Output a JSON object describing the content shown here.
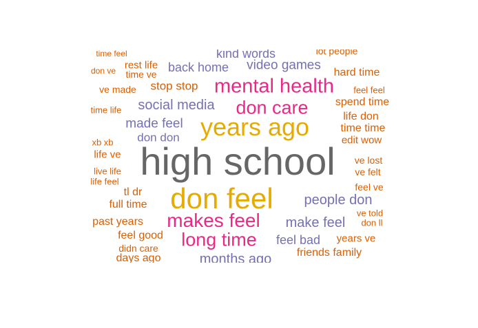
{
  "colors": {
    "dark": "#666666",
    "gold": "#E6AB02",
    "pink": "#E7298A",
    "purple": "#7570B3",
    "orange": "#D95F02"
  },
  "words": [
    {
      "text": "high school",
      "color": "dark"
    },
    {
      "text": "don feel",
      "color": "gold"
    },
    {
      "text": "years ago",
      "color": "gold"
    },
    {
      "text": "mental health",
      "color": "pink"
    },
    {
      "text": "don care",
      "color": "pink"
    },
    {
      "text": "makes feel",
      "color": "pink"
    },
    {
      "text": "long time",
      "color": "pink"
    },
    {
      "text": "people don",
      "color": "purple"
    },
    {
      "text": "make feel",
      "color": "purple"
    },
    {
      "text": "social media",
      "color": "purple"
    },
    {
      "text": "made feel",
      "color": "purple"
    },
    {
      "text": "video games",
      "color": "purple"
    },
    {
      "text": "back home",
      "color": "purple"
    },
    {
      "text": "months ago",
      "color": "purple"
    },
    {
      "text": "feel bad",
      "color": "purple"
    },
    {
      "text": "don don",
      "color": "purple"
    },
    {
      "text": "kind words",
      "color": "purple"
    },
    {
      "text": "stop stop",
      "color": "orange"
    },
    {
      "text": "spend time",
      "color": "orange"
    },
    {
      "text": "hard time",
      "color": "orange"
    },
    {
      "text": "time time",
      "color": "orange"
    },
    {
      "text": "life don",
      "color": "orange"
    },
    {
      "text": "edit wow",
      "color": "orange"
    },
    {
      "text": "friends family",
      "color": "orange"
    },
    {
      "text": "years ve",
      "color": "orange"
    },
    {
      "text": "feel good",
      "color": "orange"
    },
    {
      "text": "past years",
      "color": "orange"
    },
    {
      "text": "full time",
      "color": "orange"
    },
    {
      "text": "tl dr",
      "color": "orange"
    },
    {
      "text": "life ve",
      "color": "orange"
    },
    {
      "text": "rest life",
      "color": "orange"
    },
    {
      "text": "time ve",
      "color": "orange"
    },
    {
      "text": "ve made",
      "color": "orange"
    },
    {
      "text": "don ve",
      "color": "orange"
    },
    {
      "text": "time feel",
      "color": "orange"
    },
    {
      "text": "lot people",
      "color": "orange"
    },
    {
      "text": "feel feel",
      "color": "orange"
    },
    {
      "text": "time life",
      "color": "orange"
    },
    {
      "text": "xb xb",
      "color": "orange"
    },
    {
      "text": "live life",
      "color": "orange"
    },
    {
      "text": "life feel",
      "color": "orange"
    },
    {
      "text": "ve lost",
      "color": "orange"
    },
    {
      "text": "ve felt",
      "color": "orange"
    },
    {
      "text": "feel ve",
      "color": "orange"
    },
    {
      "text": "ve told",
      "color": "orange"
    },
    {
      "text": "don ll",
      "color": "orange"
    },
    {
      "text": "didn care",
      "color": "orange"
    },
    {
      "text": "days ago",
      "color": "orange"
    }
  ]
}
